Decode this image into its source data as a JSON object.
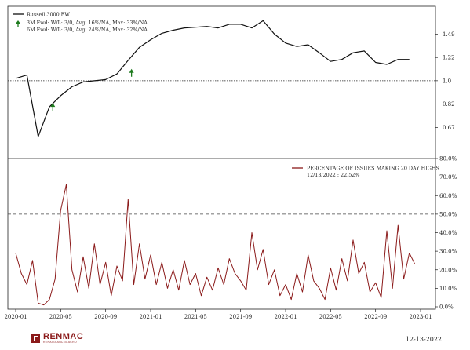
{
  "chart_data": [
    {
      "type": "line",
      "legend": [
        {
          "label": "Russell 3000 EW",
          "color": "#111111"
        },
        {
          "label": "3M Fwd: W/L: 3/0, Avg: 16%/NA, Max: 33%/NA",
          "color": "#1e7b1e"
        },
        {
          "label": "6M Fwd: W/L: 3/0, Avg: 24%/NA, Max: 32%/NA",
          "color": "#1e7b1e"
        }
      ],
      "legend_position": "top-left",
      "y_scale": "log",
      "ylim": [
        0.55,
        1.72
      ],
      "y_ticks": [
        "1.49",
        "1.22",
        "1.0",
        "0.82",
        "0.67"
      ],
      "reference_line": 1.0,
      "series": [
        {
          "x": [
            "2020-01",
            "2020-02",
            "2020-03",
            "2020-04",
            "2020-05",
            "2020-06",
            "2020-07",
            "2020-08",
            "2020-09",
            "2020-10",
            "2020-11",
            "2020-12",
            "2021-01",
            "2021-02",
            "2021-03",
            "2021-04",
            "2021-05",
            "2021-06",
            "2021-07",
            "2021-08",
            "2021-09",
            "2021-10",
            "2021-11",
            "2021-12",
            "2022-01",
            "2022-02",
            "2022-03",
            "2022-04",
            "2022-05",
            "2022-06",
            "2022-07",
            "2022-08",
            "2022-09",
            "2022-10",
            "2022-11",
            "2022-12"
          ],
          "values": [
            1.02,
            1.05,
            0.62,
            0.8,
            0.88,
            0.95,
            0.99,
            1.0,
            1.01,
            1.06,
            1.19,
            1.33,
            1.42,
            1.5,
            1.54,
            1.57,
            1.58,
            1.59,
            1.57,
            1.62,
            1.62,
            1.57,
            1.67,
            1.49,
            1.38,
            1.34,
            1.36,
            1.27,
            1.18,
            1.2,
            1.27,
            1.29,
            1.17,
            1.15,
            1.2,
            1.2
          ]
        }
      ],
      "markers": [
        {
          "x": "2020-04",
          "value": 0.8,
          "label": "up-arrow",
          "color": "#1e7b1e"
        },
        {
          "x": "2020-11",
          "value": 1.07,
          "label": "up-arrow",
          "color": "#1e7b1e"
        }
      ]
    },
    {
      "type": "line",
      "legend": [
        {
          "label": "PERCENTAGE OF ISSUES MAKING 20 DAY HIGHS",
          "color": "#8b1a1a"
        },
        {
          "label": "12/13/2022 : 22.52%",
          "color": ""
        }
      ],
      "legend_position": "top-right",
      "ylim": [
        0,
        80
      ],
      "y_ticks": [
        "80.0%",
        "70.0%",
        "60.0%",
        "50.0%",
        "40.0%",
        "30.0%",
        "20.0%",
        "10.0%",
        "0.0%"
      ],
      "reference_line": 50,
      "series": [
        {
          "x": [
            "2020-01",
            "2020-01",
            "2020-02",
            "2020-02",
            "2020-03",
            "2020-03",
            "2020-04",
            "2020-04",
            "2020-05",
            "2020-05",
            "2020-06",
            "2020-06",
            "2020-07",
            "2020-07",
            "2020-08",
            "2020-08",
            "2020-09",
            "2020-09",
            "2020-10",
            "2020-10",
            "2020-11",
            "2020-11",
            "2020-12",
            "2020-12",
            "2021-01",
            "2021-01",
            "2021-02",
            "2021-02",
            "2021-03",
            "2021-03",
            "2021-04",
            "2021-04",
            "2021-05",
            "2021-05",
            "2021-06",
            "2021-06",
            "2021-07",
            "2021-07",
            "2021-08",
            "2021-08",
            "2021-09",
            "2021-09",
            "2021-10",
            "2021-10",
            "2021-11",
            "2021-11",
            "2021-12",
            "2021-12",
            "2022-01",
            "2022-01",
            "2022-02",
            "2022-02",
            "2022-03",
            "2022-03",
            "2022-04",
            "2022-04",
            "2022-05",
            "2022-05",
            "2022-06",
            "2022-06",
            "2022-07",
            "2022-07",
            "2022-08",
            "2022-08",
            "2022-09",
            "2022-09",
            "2022-10",
            "2022-10",
            "2022-11",
            "2022-11",
            "2022-12",
            "2022-12"
          ],
          "values": [
            29,
            18,
            12,
            25,
            2,
            1,
            4,
            15,
            52,
            66,
            20,
            8,
            27,
            10,
            34,
            12,
            24,
            6,
            22,
            14,
            58,
            12,
            34,
            15,
            28,
            12,
            24,
            10,
            20,
            9,
            25,
            12,
            18,
            6,
            16,
            9,
            21,
            12,
            26,
            18,
            14,
            9,
            40,
            20,
            31,
            12,
            20,
            6,
            12,
            4,
            18,
            8,
            28,
            14,
            10,
            4,
            21,
            9,
            26,
            14,
            36,
            18,
            24,
            8,
            13,
            5,
            41,
            10,
            44,
            15,
            29,
            23
          ]
        }
      ]
    }
  ],
  "x_ticks": [
    "2020-01",
    "2020-05",
    "2020-09",
    "2021-01",
    "2021-05",
    "2021-09",
    "2022-01",
    "2022-05",
    "2022-09",
    "2023-01"
  ],
  "footer": {
    "brand": "RENMAC",
    "brand_sub": "RENAISSANCEMACRO",
    "date": "12-13-2022"
  }
}
